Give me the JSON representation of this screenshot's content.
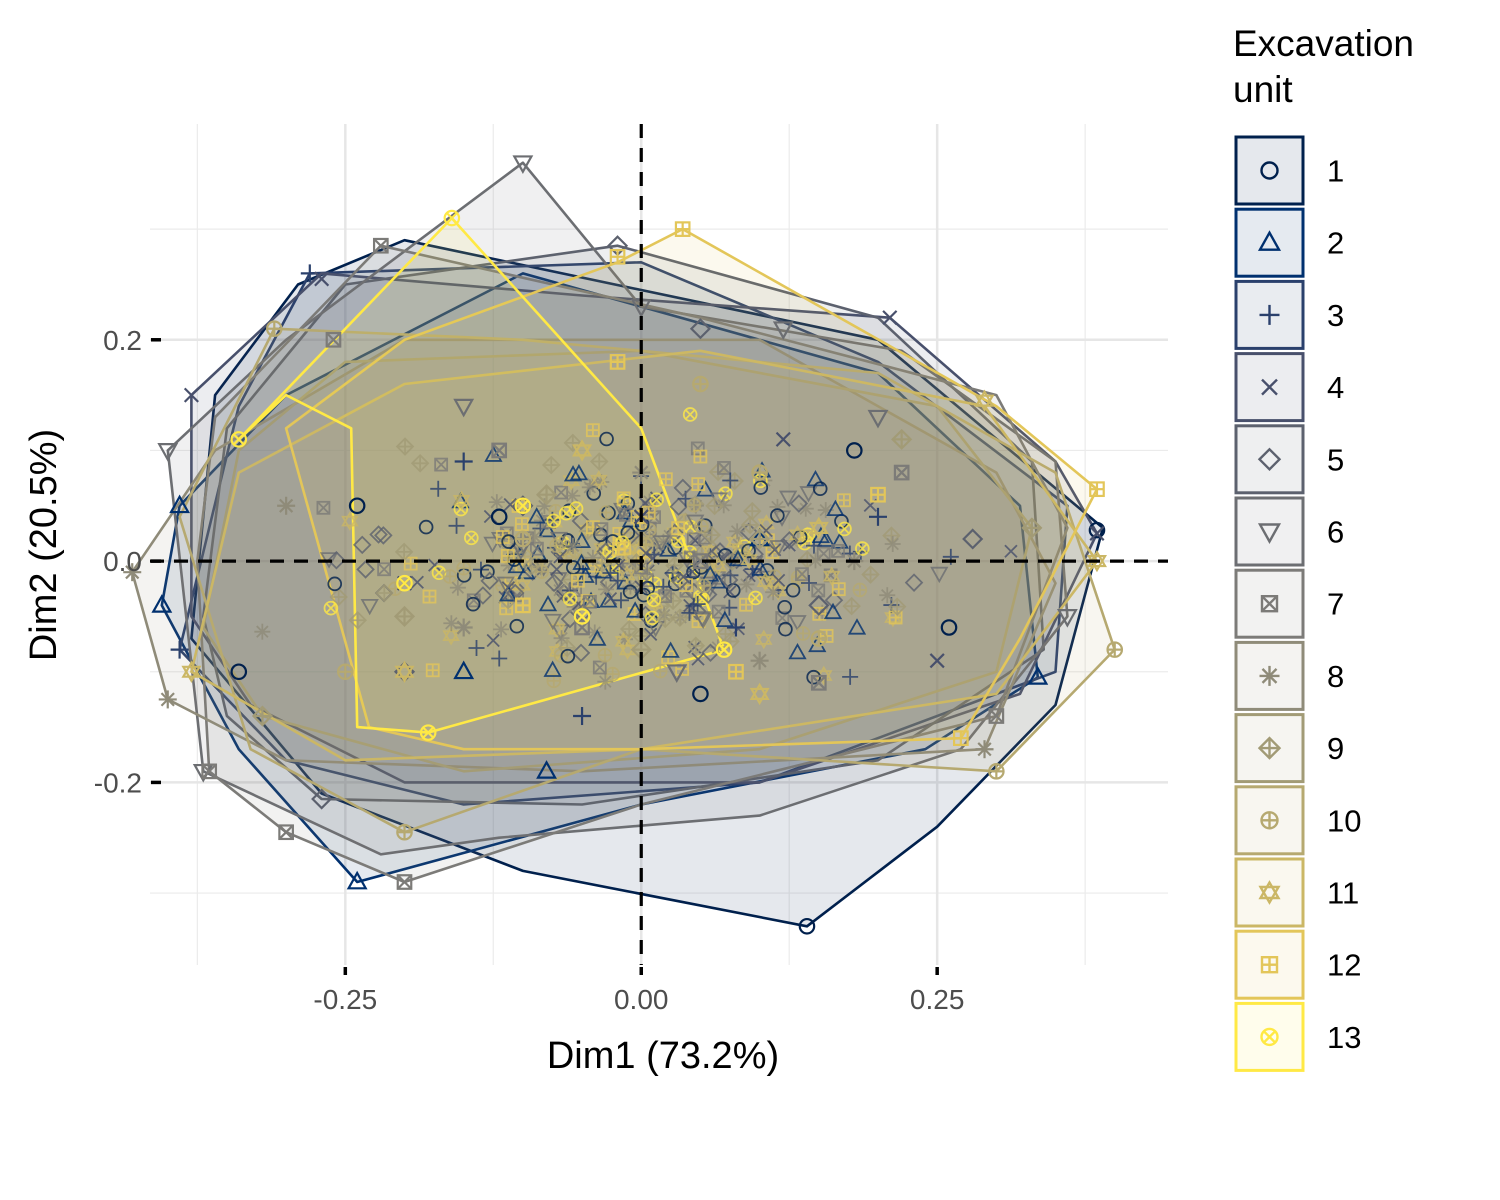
{
  "chart_data": {
    "type": "scatter",
    "subtype": "pca-biplot-with-convex-hulls",
    "xlabel": "Dim1 (73.2%)",
    "ylabel": "Dim2 (20.5%)",
    "xlim": [
      -0.415,
      0.445
    ],
    "ylim": [
      -0.365,
      0.395
    ],
    "x_ticks": [
      -0.25,
      0.0,
      0.25
    ],
    "x_tick_labels": [
      "-0.25",
      "0.00",
      "0.25"
    ],
    "y_ticks": [
      -0.2,
      0.0,
      0.2
    ],
    "y_tick_labels": [
      "-0.2",
      "0.0",
      "0.2"
    ],
    "reference_lines": {
      "x": 0,
      "y": 0,
      "style": "dashed"
    },
    "grid": true,
    "legend": {
      "title": "Excavation unit",
      "position": "right"
    },
    "series": [
      {
        "name": "1",
        "shape": "circle",
        "color": "#00204D",
        "hull": [
          [
            -0.38,
            -0.07
          ],
          [
            -0.36,
            0.15
          ],
          [
            -0.29,
            0.25
          ],
          [
            -0.2,
            0.29
          ],
          [
            0.2,
            0.2
          ],
          [
            0.39,
            0.03
          ],
          [
            0.35,
            -0.13
          ],
          [
            0.25,
            -0.24
          ],
          [
            0.14,
            -0.33
          ],
          [
            -0.1,
            -0.28
          ],
          [
            -0.27,
            -0.21
          ]
        ],
        "points": [
          [
            0.14,
            -0.33
          ],
          [
            0.385,
            0.028
          ],
          [
            -0.34,
            -0.1
          ],
          [
            0.26,
            -0.06
          ],
          [
            -0.12,
            0.04
          ],
          [
            0.05,
            -0.12
          ],
          [
            -0.24,
            0.05
          ],
          [
            0.18,
            0.1
          ]
        ]
      },
      {
        "name": "2",
        "shape": "triangle",
        "color": "#00306F",
        "hull": [
          [
            -0.405,
            -0.04
          ],
          [
            -0.39,
            0.05
          ],
          [
            -0.3,
            0.15
          ],
          [
            -0.1,
            0.26
          ],
          [
            0.2,
            0.17
          ],
          [
            0.32,
            0.05
          ],
          [
            0.335,
            -0.105
          ],
          [
            0.24,
            -0.17
          ],
          [
            0.0,
            -0.22
          ],
          [
            -0.24,
            -0.29
          ],
          [
            -0.34,
            -0.17
          ]
        ],
        "points": [
          [
            -0.24,
            -0.29
          ],
          [
            -0.405,
            -0.04
          ],
          [
            0.335,
            -0.105
          ],
          [
            -0.08,
            -0.19
          ],
          [
            -0.39,
            0.05
          ],
          [
            0.1,
            0.02
          ],
          [
            -0.15,
            -0.1
          ]
        ]
      },
      {
        "name": "3",
        "shape": "plus",
        "color": "#2A406C",
        "hull": [
          [
            -0.39,
            -0.08
          ],
          [
            -0.34,
            0.14
          ],
          [
            -0.28,
            0.26
          ],
          [
            0.0,
            0.27
          ],
          [
            0.2,
            0.18
          ],
          [
            0.36,
            0.05
          ],
          [
            0.35,
            -0.1
          ],
          [
            0.1,
            -0.2
          ],
          [
            -0.15,
            -0.22
          ],
          [
            -0.3,
            -0.18
          ]
        ],
        "points": [
          [
            -0.28,
            0.26
          ],
          [
            -0.39,
            -0.08
          ],
          [
            -0.15,
            0.09
          ],
          [
            0.08,
            -0.06
          ],
          [
            0.2,
            0.04
          ],
          [
            -0.05,
            -0.14
          ]
        ]
      },
      {
        "name": "4",
        "shape": "x",
        "color": "#48506C",
        "hull": [
          [
            -0.38,
            -0.05
          ],
          [
            -0.38,
            0.15
          ],
          [
            -0.27,
            0.26
          ],
          [
            -0.05,
            0.24
          ],
          [
            0.21,
            0.22
          ],
          [
            0.35,
            0.09
          ],
          [
            0.385,
            0.025
          ],
          [
            0.32,
            -0.12
          ],
          [
            0.1,
            -0.2
          ],
          [
            -0.2,
            -0.2
          ],
          [
            -0.33,
            -0.13
          ]
        ],
        "points": [
          [
            0.21,
            0.22
          ],
          [
            -0.38,
            0.15
          ],
          [
            -0.27,
            0.255
          ],
          [
            0.385,
            0.025
          ],
          [
            0.0,
            0.04
          ],
          [
            -0.2,
            -0.02
          ],
          [
            0.25,
            -0.09
          ],
          [
            0.12,
            0.11
          ]
        ]
      },
      {
        "name": "5",
        "shape": "diamond",
        "color": "#5C616E",
        "hull": [
          [
            -0.37,
            -0.05
          ],
          [
            -0.35,
            0.12
          ],
          [
            -0.25,
            0.25
          ],
          [
            -0.02,
            0.285
          ],
          [
            0.2,
            0.22
          ],
          [
            0.33,
            0.09
          ],
          [
            0.34,
            -0.08
          ],
          [
            0.2,
            -0.18
          ],
          [
            -0.05,
            -0.22
          ],
          [
            -0.27,
            -0.215
          ],
          [
            -0.35,
            -0.14
          ]
        ],
        "points": [
          [
            -0.02,
            0.285
          ],
          [
            -0.27,
            -0.215
          ],
          [
            0.05,
            0.21
          ],
          [
            0.15,
            -0.04
          ],
          [
            -0.1,
            0.05
          ],
          [
            0.28,
            0.02
          ],
          [
            -0.2,
            -0.1
          ]
        ]
      },
      {
        "name": "6",
        "shape": "triangle-down",
        "color": "#6C6E72",
        "hull": [
          [
            -0.4,
            0.1
          ],
          [
            -0.37,
            -0.19
          ],
          [
            -0.22,
            -0.265
          ],
          [
            -0.12,
            -0.25
          ],
          [
            0.1,
            -0.23
          ],
          [
            0.27,
            -0.17
          ],
          [
            0.36,
            -0.05
          ],
          [
            0.35,
            0.09
          ],
          [
            0.22,
            0.19
          ],
          [
            0.0,
            0.23
          ],
          [
            -0.1,
            0.36
          ],
          [
            -0.3,
            0.2
          ]
        ],
        "points": [
          [
            -0.1,
            0.36
          ],
          [
            -0.4,
            0.1
          ],
          [
            -0.37,
            -0.19
          ],
          [
            0.0,
            0.23
          ],
          [
            0.36,
            -0.05
          ],
          [
            0.12,
            0.21
          ],
          [
            -0.15,
            0.14
          ],
          [
            0.03,
            -0.1
          ],
          [
            0.2,
            0.13
          ]
        ]
      },
      {
        "name": "7",
        "shape": "square-cross",
        "color": "#7C7B78",
        "hull": [
          [
            -0.365,
            -0.19
          ],
          [
            -0.375,
            0.0
          ],
          [
            -0.36,
            0.13
          ],
          [
            -0.22,
            0.285
          ],
          [
            0.05,
            0.22
          ],
          [
            0.3,
            0.15
          ],
          [
            0.36,
            0.03
          ],
          [
            0.3,
            -0.14
          ],
          [
            0.0,
            -0.22
          ],
          [
            -0.2,
            -0.29
          ],
          [
            -0.3,
            -0.245
          ]
        ],
        "points": [
          [
            -0.22,
            0.285
          ],
          [
            -0.3,
            -0.245
          ],
          [
            -0.2,
            -0.29
          ],
          [
            -0.365,
            -0.19
          ],
          [
            0.3,
            -0.14
          ],
          [
            -0.12,
            0.1
          ],
          [
            0.05,
            0.0
          ],
          [
            -0.05,
            -0.06
          ],
          [
            0.22,
            0.08
          ],
          [
            -0.26,
            0.2
          ],
          [
            0.15,
            -0.11
          ]
        ]
      },
      {
        "name": "8",
        "shape": "asterisk",
        "color": "#8F8B79",
        "hull": [
          [
            -0.43,
            -0.01
          ],
          [
            -0.4,
            -0.125
          ],
          [
            -0.3,
            -0.18
          ],
          [
            -0.05,
            -0.19
          ],
          [
            0.29,
            -0.17
          ],
          [
            0.35,
            -0.02
          ],
          [
            0.3,
            0.08
          ],
          [
            0.1,
            0.2
          ],
          [
            -0.2,
            0.2
          ],
          [
            -0.36,
            0.1
          ]
        ],
        "points": [
          [
            -0.43,
            -0.01
          ],
          [
            -0.4,
            -0.125
          ],
          [
            0.29,
            -0.17
          ],
          [
            0.0,
            0.08
          ],
          [
            -0.15,
            -0.06
          ],
          [
            0.18,
            0.0
          ],
          [
            -0.3,
            0.05
          ],
          [
            0.1,
            -0.09
          ]
        ]
      },
      {
        "name": "9",
        "shape": "diamond-plus",
        "color": "#A29B76",
        "hull": [
          [
            -0.37,
            -0.06
          ],
          [
            -0.34,
            0.1
          ],
          [
            -0.25,
            0.18
          ],
          [
            0.0,
            0.19
          ],
          [
            0.25,
            0.14
          ],
          [
            0.33,
            0.03
          ],
          [
            0.3,
            -0.1
          ],
          [
            0.1,
            -0.17
          ],
          [
            -0.15,
            -0.19
          ],
          [
            -0.32,
            -0.14
          ]
        ],
        "points": [
          [
            -0.32,
            -0.14
          ],
          [
            0.33,
            0.03
          ],
          [
            -0.08,
            0.06
          ],
          [
            0.1,
            0.02
          ],
          [
            -0.2,
            -0.05
          ],
          [
            0.22,
            0.11
          ],
          [
            0.0,
            -0.08
          ]
        ]
      },
      {
        "name": "10",
        "shape": "circle-plus",
        "color": "#B6A970",
        "hull": [
          [
            -0.39,
            0.04
          ],
          [
            -0.31,
            0.21
          ],
          [
            -0.1,
            0.2
          ],
          [
            0.2,
            0.17
          ],
          [
            0.35,
            0.08
          ],
          [
            0.4,
            -0.08
          ],
          [
            0.3,
            -0.19
          ],
          [
            0.0,
            -0.17
          ],
          [
            -0.2,
            -0.245
          ],
          [
            -0.33,
            -0.17
          ]
        ],
        "points": [
          [
            -0.31,
            0.21
          ],
          [
            0.4,
            -0.08
          ],
          [
            0.3,
            -0.19
          ],
          [
            -0.2,
            -0.245
          ],
          [
            -0.1,
            0.02
          ],
          [
            0.1,
            0.08
          ],
          [
            0.15,
            -0.07
          ],
          [
            -0.25,
            -0.1
          ],
          [
            0.05,
            0.16
          ]
        ]
      },
      {
        "name": "11",
        "shape": "star-of-david",
        "color": "#CBB765",
        "hull": [
          [
            -0.38,
            -0.1
          ],
          [
            -0.34,
            0.08
          ],
          [
            -0.2,
            0.16
          ],
          [
            0.05,
            0.19
          ],
          [
            0.29,
            0.14
          ],
          [
            0.385,
            0.0
          ],
          [
            0.3,
            -0.12
          ],
          [
            0.0,
            -0.17
          ],
          [
            -0.25,
            -0.18
          ]
        ],
        "points": [
          [
            0.29,
            0.145
          ],
          [
            0.385,
            0.0
          ],
          [
            -0.38,
            -0.1
          ],
          [
            -0.05,
            0.1
          ],
          [
            0.15,
            0.03
          ],
          [
            -0.2,
            -0.1
          ],
          [
            0.1,
            -0.12
          ]
        ]
      },
      {
        "name": "12",
        "shape": "square-plus",
        "color": "#E3C659",
        "hull": [
          [
            -0.23,
            -0.15
          ],
          [
            -0.3,
            0.12
          ],
          [
            -0.2,
            0.2
          ],
          [
            -0.02,
            0.27
          ],
          [
            0.035,
            0.3
          ],
          [
            0.3,
            0.14
          ],
          [
            0.385,
            0.065
          ],
          [
            0.32,
            -0.07
          ],
          [
            0.27,
            -0.16
          ],
          [
            0.0,
            -0.17
          ],
          [
            -0.15,
            -0.17
          ]
        ],
        "points": [
          [
            0.035,
            0.3
          ],
          [
            -0.02,
            0.275
          ],
          [
            0.385,
            0.065
          ],
          [
            0.27,
            -0.16
          ],
          [
            -0.02,
            0.18
          ],
          [
            0.2,
            0.06
          ],
          [
            -0.1,
            -0.04
          ],
          [
            0.08,
            -0.1
          ]
        ]
      },
      {
        "name": "13",
        "shape": "circle-cross",
        "color": "#FFE945",
        "hull": [
          [
            -0.16,
            0.31
          ],
          [
            0.0,
            0.12
          ],
          [
            0.07,
            -0.08
          ],
          [
            -0.18,
            -0.155
          ],
          [
            -0.24,
            -0.15
          ],
          [
            -0.245,
            0.12
          ],
          [
            -0.3,
            0.15
          ],
          [
            -0.34,
            0.11
          ]
        ],
        "points": [
          [
            -0.16,
            0.31
          ],
          [
            0.07,
            -0.08
          ],
          [
            -0.18,
            -0.155
          ],
          [
            -0.34,
            0.11
          ],
          [
            -0.1,
            0.05
          ],
          [
            -0.05,
            -0.05
          ],
          [
            -0.2,
            -0.02
          ]
        ]
      }
    ]
  }
}
